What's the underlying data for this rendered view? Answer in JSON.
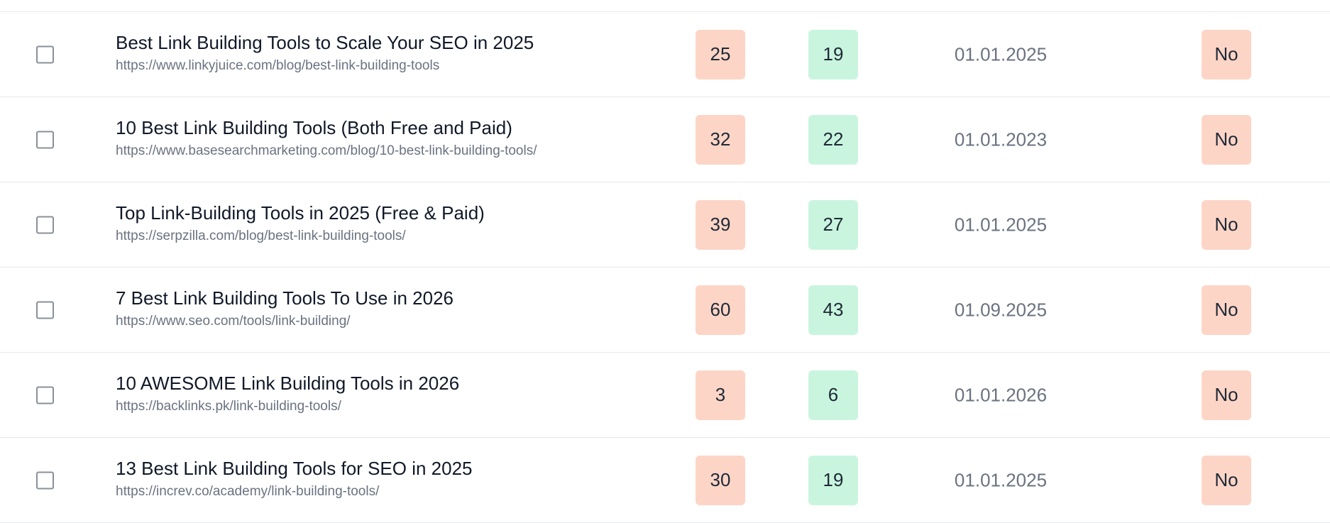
{
  "rows": [
    {
      "title": "Best Link Building Tools to Scale Your SEO in 2025",
      "url": "https://www.linkyjuice.com/blog/best-link-building-tools",
      "metric_a": "25",
      "metric_b": "19",
      "date": "01.01.2025",
      "flag": "No"
    },
    {
      "title": "10 Best Link Building Tools (Both Free and Paid)",
      "url": "https://www.basesearchmarketing.com/blog/10-best-link-building-tools/",
      "metric_a": "32",
      "metric_b": "22",
      "date": "01.01.2023",
      "flag": "No"
    },
    {
      "title": "Top Link-Building Tools in 2025 (Free & Paid)",
      "url": "https://serpzilla.com/blog/best-link-building-tools/",
      "metric_a": "39",
      "metric_b": "27",
      "date": "01.01.2025",
      "flag": "No"
    },
    {
      "title": "7 Best Link Building Tools To Use in 2026",
      "url": "https://www.seo.com/tools/link-building/",
      "metric_a": "60",
      "metric_b": "43",
      "date": "01.09.2025",
      "flag": "No"
    },
    {
      "title": "10 AWESOME Link Building Tools in 2026",
      "url": "https://backlinks.pk/link-building-tools/",
      "metric_a": "3",
      "metric_b": "6",
      "date": "01.01.2026",
      "flag": "No"
    },
    {
      "title": "13 Best Link Building Tools for SEO in 2025",
      "url": "https://increv.co/academy/link-building-tools/",
      "metric_a": "30",
      "metric_b": "19",
      "date": "01.01.2025",
      "flag": "No"
    }
  ]
}
